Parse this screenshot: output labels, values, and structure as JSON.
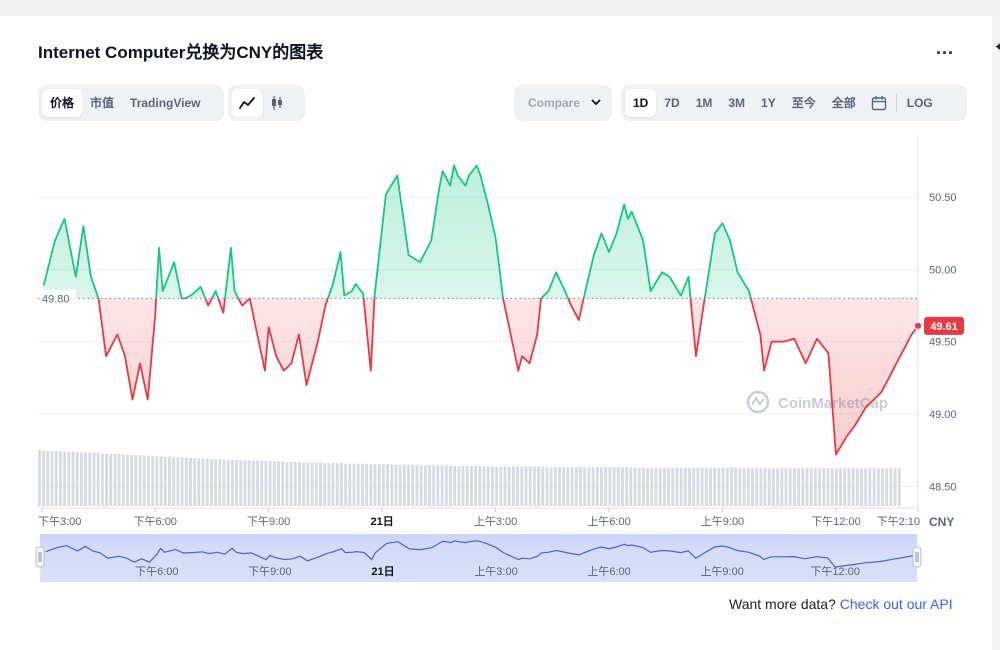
{
  "header": {
    "title": "Internet Computer兑换为CNY的图表",
    "more_label": "..."
  },
  "toolbar": {
    "views": [
      "价格",
      "市值",
      "TradingView"
    ],
    "active_view": 0,
    "chart_types": [
      {
        "icon": "line-chart-icon"
      },
      {
        "icon": "candlestick-icon"
      }
    ],
    "compare_label": "Compare w",
    "ranges": [
      "1D",
      "7D",
      "1M",
      "3M",
      "1Y",
      "至今",
      "全部"
    ],
    "active_range": 0,
    "calendar_icon": "calendar-icon",
    "log_label": "LOG"
  },
  "watermark": "CoinMarketCap",
  "currency_label": "CNY",
  "reference_label": "49.80",
  "current_label": "49.61",
  "colors": {
    "up": "#16c784",
    "down": "#ea3943",
    "accent": "#3861fb",
    "navigator": "#4a63d8"
  },
  "navigator_labels": [
    "下午6:00",
    "下午9:00",
    "21日",
    "上午3:00",
    "上午6:00",
    "上午9:00",
    "下午12:00"
  ],
  "footer": {
    "text": "Want more data? ",
    "link": "Check out our API"
  },
  "chart_data": {
    "type": "line",
    "title": "",
    "xlabel": "",
    "ylabel": "",
    "x_range_hours": [
      14.9,
      38.17
    ],
    "ylim": [
      48.35,
      50.93
    ],
    "yticks": [
      48.5,
      49.0,
      49.5,
      50.0,
      50.5
    ],
    "ytick_labels": [
      "48.50",
      "49.00",
      "49.50",
      "50.00",
      "50.50"
    ],
    "xticks": [
      15,
      18,
      21,
      24,
      27,
      30,
      33,
      36,
      38.17
    ],
    "xtick_labels": [
      "下午3:00",
      "下午6:00",
      "下午9:00",
      "21日",
      "上午3:00",
      "上午6:00",
      "上午9:00",
      "下午12:00",
      "下午2:10"
    ],
    "reference_price": 49.8,
    "current_price": 49.61,
    "grid": true,
    "series": [
      {
        "x": [
          15.05,
          15.35,
          15.6,
          15.9,
          16.1,
          16.3,
          16.5,
          16.7,
          17.0,
          17.2,
          17.4,
          17.6,
          17.8,
          18.0,
          18.1,
          18.2,
          18.5,
          18.7,
          18.8,
          19.0,
          19.2,
          19.4,
          19.6,
          19.8,
          20.0,
          20.1,
          20.3,
          20.5,
          20.7,
          20.9,
          21.0,
          21.2,
          21.4,
          21.6,
          21.8,
          22.0,
          22.3,
          22.5,
          22.7,
          22.9,
          23.0,
          23.2,
          23.3,
          23.5,
          23.7,
          23.8,
          24.1,
          24.4,
          24.7,
          25.0,
          25.3,
          25.5,
          25.6,
          25.8,
          25.9,
          26.0,
          26.2,
          26.3,
          26.5,
          26.6,
          26.8,
          27.0,
          27.2,
          27.4,
          27.6,
          27.7,
          27.9,
          28.1,
          28.2,
          28.4,
          28.6,
          28.8,
          29.0,
          29.2,
          29.4,
          29.6,
          29.8,
          30.0,
          30.2,
          30.4,
          30.5,
          30.6,
          30.9,
          31.1,
          31.4,
          31.6,
          31.9,
          32.1,
          32.3,
          32.5,
          32.8,
          33.0,
          33.2,
          33.4,
          33.7,
          34.0,
          34.1,
          34.3,
          34.6,
          34.9,
          35.2,
          35.5,
          35.8,
          36.0,
          36.3,
          36.5,
          36.8,
          37.0,
          37.2,
          37.4,
          37.6,
          37.8,
          38.0,
          38.17
        ],
        "y": [
          49.89,
          50.2,
          50.35,
          49.95,
          50.3,
          49.95,
          49.8,
          49.4,
          49.55,
          49.4,
          49.1,
          49.35,
          49.1,
          49.68,
          50.15,
          49.85,
          50.05,
          49.8,
          49.8,
          49.83,
          49.88,
          49.75,
          49.85,
          49.7,
          50.15,
          49.85,
          49.75,
          49.8,
          49.55,
          49.3,
          49.6,
          49.4,
          49.3,
          49.35,
          49.55,
          49.2,
          49.5,
          49.75,
          49.9,
          50.12,
          49.82,
          49.85,
          49.9,
          49.83,
          49.3,
          49.82,
          50.52,
          50.65,
          50.1,
          50.05,
          50.2,
          50.55,
          50.68,
          50.58,
          50.72,
          50.65,
          50.58,
          50.65,
          50.72,
          50.65,
          50.45,
          50.22,
          49.8,
          49.55,
          49.3,
          49.4,
          49.35,
          49.55,
          49.8,
          49.85,
          49.98,
          49.87,
          49.75,
          49.65,
          49.88,
          50.1,
          50.25,
          50.12,
          50.25,
          50.45,
          50.35,
          50.4,
          50.2,
          49.85,
          49.98,
          49.95,
          49.82,
          49.95,
          49.4,
          49.75,
          50.25,
          50.32,
          50.2,
          49.98,
          49.85,
          49.55,
          49.3,
          49.5,
          49.5,
          49.52,
          49.35,
          49.52,
          49.42,
          48.72,
          48.85,
          48.92,
          49.05,
          49.1,
          49.15,
          49.25,
          49.35,
          49.45,
          49.55,
          49.61
        ]
      }
    ],
    "volume": [
      0.98,
      0.97,
      0.97,
      0.96,
      0.96,
      0.95,
      0.95,
      0.95,
      0.95,
      0.94,
      0.94,
      0.94,
      0.93,
      0.93,
      0.93,
      0.92,
      0.92,
      0.91,
      0.91,
      0.91,
      0.9,
      0.9,
      0.89,
      0.89,
      0.89,
      0.88,
      0.88,
      0.88,
      0.87,
      0.87,
      0.86,
      0.86,
      0.86,
      0.85,
      0.85,
      0.84,
      0.84,
      0.84,
      0.83,
      0.83,
      0.83,
      0.82,
      0.82,
      0.82,
      0.81,
      0.81,
      0.81,
      0.8,
      0.8,
      0.8,
      0.8,
      0.79,
      0.79,
      0.79,
      0.79,
      0.78,
      0.78,
      0.78,
      0.78,
      0.77,
      0.77,
      0.77,
      0.77,
      0.76,
      0.76,
      0.76,
      0.76,
      0.76,
      0.75,
      0.75,
      0.75,
      0.75,
      0.75,
      0.74,
      0.74,
      0.74,
      0.74,
      0.74,
      0.73,
      0.73,
      0.73,
      0.73,
      0.73,
      0.73,
      0.72,
      0.72,
      0.72,
      0.72,
      0.72,
      0.72,
      0.72,
      0.71,
      0.71,
      0.71,
      0.71,
      0.71,
      0.71,
      0.71,
      0.7,
      0.7,
      0.7,
      0.7,
      0.7,
      0.7,
      0.7,
      0.7,
      0.7,
      0.69,
      0.69,
      0.69,
      0.69,
      0.69,
      0.69,
      0.69,
      0.69,
      0.69,
      0.69,
      0.69,
      0.69,
      0.69,
      0.69,
      0.68,
      0.68,
      0.68,
      0.68,
      0.68,
      0.68,
      0.68,
      0.68,
      0.68,
      0.68,
      0.68,
      0.68,
      0.68,
      0.68,
      0.68,
      0.68,
      0.68,
      0.68,
      0.68,
      0.68,
      0.68,
      0.67,
      0.67,
      0.67,
      0.67,
      0.67,
      0.67,
      0.67,
      0.67,
      0.67,
      0.67,
      0.67,
      0.67,
      0.67,
      0.67,
      0.67,
      0.67,
      0.67,
      0.67,
      0.67,
      0.67,
      0.67,
      0.67,
      0.67,
      0.67,
      0.67,
      0.67,
      0.67,
      0.67,
      0.66,
      0.66,
      0.66,
      0.66,
      0.66,
      0.66,
      0.66,
      0.66,
      0.66,
      0.66,
      0.66,
      0.66,
      0.66,
      0.66,
      0.66,
      0.66,
      0.66,
      0.66,
      0.66,
      0.66,
      0.66,
      0.66,
      0.66,
      0.66,
      0.66,
      0.66,
      0.66,
      0.66,
      0.66,
      0.66,
      0.66,
      0.66,
      0.66,
      0.66,
      0.66,
      0.66
    ]
  }
}
